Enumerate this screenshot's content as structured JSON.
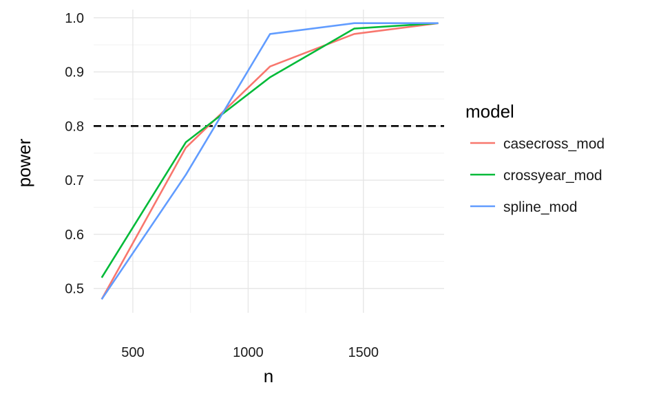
{
  "chart_data": {
    "type": "line",
    "xlabel": "n",
    "ylabel": "power",
    "xlim": [
      330,
      1850
    ],
    "ylim": [
      0.455,
      1.015
    ],
    "x_ticks": [
      500,
      1000,
      1500
    ],
    "y_ticks": [
      0.5,
      0.6,
      0.7,
      0.8,
      0.9,
      1.0
    ],
    "y_tick_labels": [
      "0.5",
      "0.6",
      "0.7",
      "0.8",
      "0.9",
      "1.0"
    ],
    "grid": true,
    "reference_line": {
      "y": 0.8,
      "style": "dashed",
      "color": "#000000"
    },
    "x": [
      365,
      730,
      1095,
      1460,
      1825
    ],
    "series": [
      {
        "name": "casecross_mod",
        "color": "#F8766D",
        "values": [
          0.48,
          0.76,
          0.91,
          0.97,
          0.99
        ]
      },
      {
        "name": "crossyear_mod",
        "color": "#00BA38",
        "values": [
          0.52,
          0.77,
          0.89,
          0.98,
          0.99
        ]
      },
      {
        "name": "spline_mod",
        "color": "#619CFF",
        "values": [
          0.48,
          0.71,
          0.97,
          0.99,
          0.99
        ]
      }
    ],
    "legend": {
      "title": "model",
      "position": "right"
    }
  }
}
